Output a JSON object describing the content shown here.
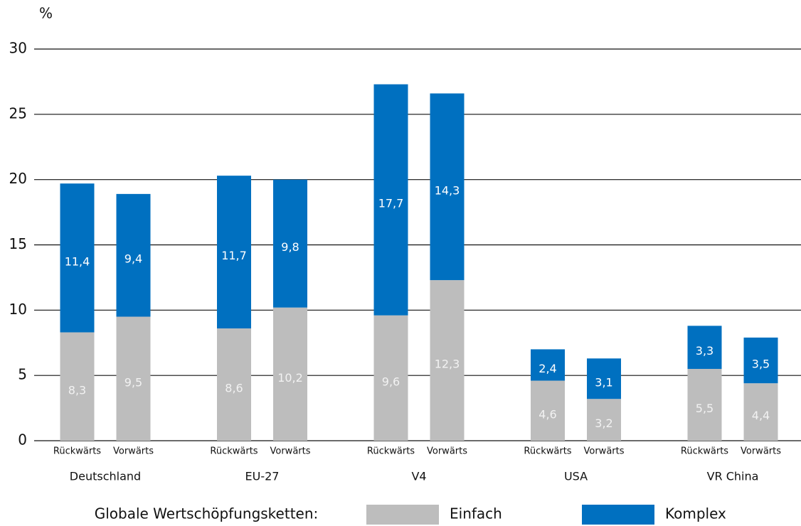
{
  "chart_data": {
    "type": "stacked_bar",
    "y_label": "%",
    "categories": [
      "Rückwärts",
      "Vorwärts",
      "Rückwärts",
      "Vorwärts",
      "Rückwärts",
      "Vorwärts",
      "Rückwärts",
      "Vorwärts",
      "Rückwärts",
      "Vorwärts"
    ],
    "groups": [
      "Deutschland",
      "EU-27",
      "V4",
      "USA",
      "VR China"
    ],
    "series": [
      {
        "name": "Einfach",
        "color": "#bdbdbd",
        "label_color": "#f2f2f2",
        "values": [
          8.3,
          9.5,
          8.6,
          10.2,
          9.6,
          12.3,
          4.6,
          3.2,
          5.5,
          4.4
        ],
        "value_labels": [
          "8,3",
          "9,5",
          "8,6",
          "10,2",
          "9,6",
          "12,3",
          "4,6",
          "3,2",
          "5,5",
          "4,4"
        ]
      },
      {
        "name": "Komplex",
        "color": "#0070c0",
        "label_color": "#ffffff",
        "values": [
          11.4,
          9.4,
          11.7,
          9.8,
          17.7,
          14.3,
          2.4,
          3.1,
          3.3,
          3.5
        ],
        "value_labels": [
          "11,4",
          "9,4",
          "11,7",
          "9,8",
          "17,7",
          "14,3",
          "2,4",
          "3,1",
          "3,3",
          "3,5"
        ]
      }
    ],
    "legend_title": "Globale Wertschöpfungsketten:",
    "legend_position": "bottom",
    "ylim": [
      0,
      30
    ],
    "yticks": [
      0,
      5,
      10,
      15,
      20,
      25,
      30
    ],
    "grid": true
  }
}
